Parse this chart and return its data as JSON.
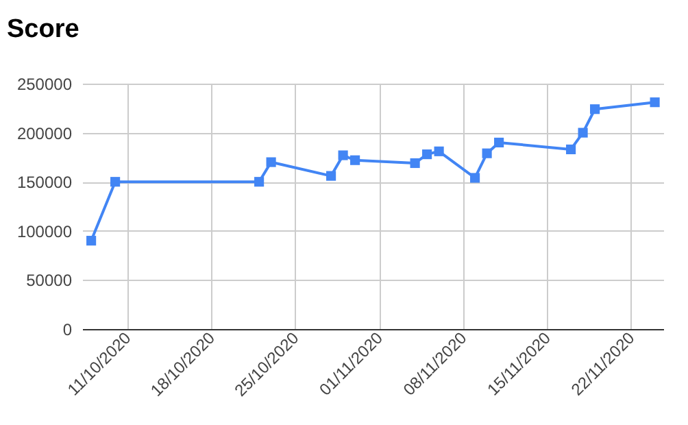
{
  "chart_data": {
    "type": "line",
    "title": "Score",
    "x": [
      "2020-10-08",
      "2020-10-10",
      "2020-10-22",
      "2020-10-23",
      "2020-10-28",
      "2020-10-29",
      "2020-10-30",
      "2020-11-04",
      "2020-11-05",
      "2020-11-06",
      "2020-11-09",
      "2020-11-10",
      "2020-11-11",
      "2020-11-17",
      "2020-11-18",
      "2020-11-19",
      "2020-11-24"
    ],
    "series": [
      {
        "color": "#4285f4",
        "values": [
          90000,
          150000,
          150000,
          170000,
          156000,
          177000,
          172000,
          169000,
          178000,
          181000,
          154000,
          179000,
          190000,
          183000,
          200000,
          224000,
          231000
        ]
      }
    ],
    "xlim": [
      "2020-10-07T06:00",
      "2020-11-24T17:00"
    ],
    "xticks": [
      {
        "value": "2020-10-11",
        "label": "11/10/2020"
      },
      {
        "value": "2020-10-18",
        "label": "18/10/2020"
      },
      {
        "value": "2020-10-25",
        "label": "25/10/2020"
      },
      {
        "value": "2020-11-01",
        "label": "01/11/2020"
      },
      {
        "value": "2020-11-08",
        "label": "08/11/2020"
      },
      {
        "value": "2020-11-15",
        "label": "15/11/2020"
      },
      {
        "value": "2020-11-22",
        "label": "22/11/2020"
      }
    ],
    "ylim": [
      0,
      250000
    ],
    "yticks": [
      0,
      50000,
      100000,
      150000,
      200000,
      250000
    ],
    "grid": true,
    "marker": "square",
    "line_style": "solid"
  }
}
